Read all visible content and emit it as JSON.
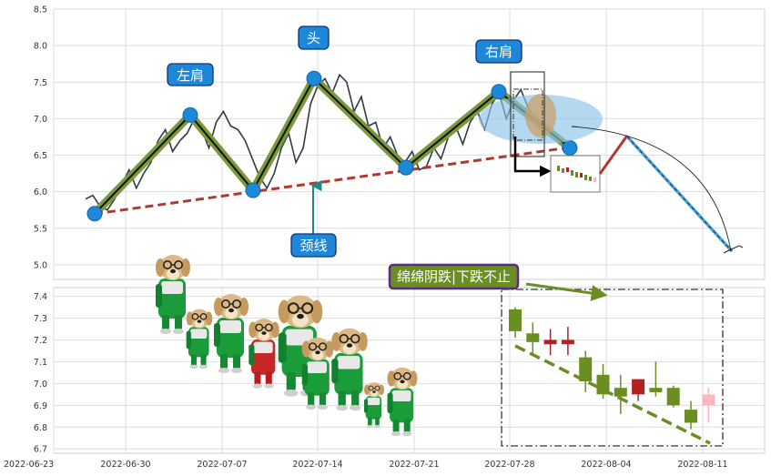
{
  "chart_data": [
    {
      "type": "line",
      "title": "",
      "ylim": [
        4.8,
        8.5
      ],
      "yticks": [
        "8.5",
        "8.0",
        "7.5",
        "7.0",
        "6.5",
        "6.0",
        "5.5",
        "5.0"
      ],
      "price_series": [
        5.9,
        5.95,
        5.8,
        5.75,
        5.9,
        6.1,
        6.3,
        6.05,
        6.25,
        6.4,
        6.7,
        6.85,
        6.55,
        6.7,
        6.8,
        7.0,
        6.85,
        6.6,
        6.95,
        7.1,
        6.9,
        6.85,
        6.7,
        6.45,
        6.2,
        6.05,
        6.25,
        6.6,
        6.8,
        6.4,
        6.6,
        7.2,
        7.45,
        7.55,
        7.35,
        7.6,
        7.5,
        7.1,
        7.3,
        6.9,
        6.95,
        6.6,
        6.75,
        6.5,
        6.4,
        6.55,
        6.3,
        6.35,
        6.6,
        6.45,
        6.75,
        6.9,
        6.65,
        6.95,
        7.1,
        6.85,
        7.2,
        7.35,
        7.0,
        7.25,
        7.4,
        7.15,
        7.0,
        6.95,
        6.8,
        6.7,
        6.65,
        6.6
      ],
      "pattern_points": [
        {
          "label": "左肩",
          "y": 7.05
        },
        {
          "label": "头",
          "y": 7.55
        },
        {
          "label": "右肩",
          "y": 7.37
        }
      ],
      "troughs": [
        5.7,
        6.02,
        6.33,
        6.6
      ],
      "neckline_label": "颈线",
      "projection": [
        6.8,
        5.22
      ]
    },
    {
      "type": "candlestick",
      "ylim": [
        6.7,
        7.42
      ],
      "yticks": [
        "7.4",
        "7.3",
        "7.2",
        "7.1",
        "7.0",
        "6.9",
        "6.8",
        "6.7"
      ],
      "xticks": [
        "2022-06-23",
        "2022-06-30",
        "2022-07-07",
        "2022-07-14",
        "2022-07-21",
        "2022-07-28",
        "2022-08-04",
        "2022-08-11"
      ],
      "annotation": "绵绵阴跌|下跌不止",
      "candles": [
        {
          "open": 7.34,
          "close": 7.24,
          "high": 7.35,
          "low": 7.21
        },
        {
          "open": 7.23,
          "close": 7.19,
          "high": 7.28,
          "low": 7.14
        },
        {
          "open": 7.18,
          "close": 7.2,
          "high": 7.25,
          "low": 7.13
        },
        {
          "open": 7.18,
          "close": 7.2,
          "high": 7.26,
          "low": 7.13
        },
        {
          "open": 7.12,
          "close": 7.01,
          "high": 7.15,
          "low": 6.96
        },
        {
          "open": 7.04,
          "close": 6.95,
          "high": 7.09,
          "low": 6.93
        },
        {
          "open": 6.98,
          "close": 6.94,
          "high": 7.04,
          "low": 6.86
        },
        {
          "open": 6.95,
          "close": 7.02,
          "high": 7.02,
          "low": 6.92
        },
        {
          "open": 6.98,
          "close": 6.96,
          "high": 7.1,
          "low": 6.94
        },
        {
          "open": 6.98,
          "close": 6.9,
          "high": 6.99,
          "low": 6.89
        },
        {
          "open": 6.88,
          "close": 6.82,
          "high": 6.92,
          "low": 6.79
        },
        {
          "open": 6.9,
          "close": 6.95,
          "high": 6.98,
          "low": 6.82
        }
      ]
    }
  ],
  "colors": {
    "bull": "#b22222",
    "bear": "#6b8e23",
    "last": "#ffb6c1",
    "neckline": "#b03a2e",
    "label_bg": "#1e88d8",
    "pattern": "#7a9a3a"
  }
}
